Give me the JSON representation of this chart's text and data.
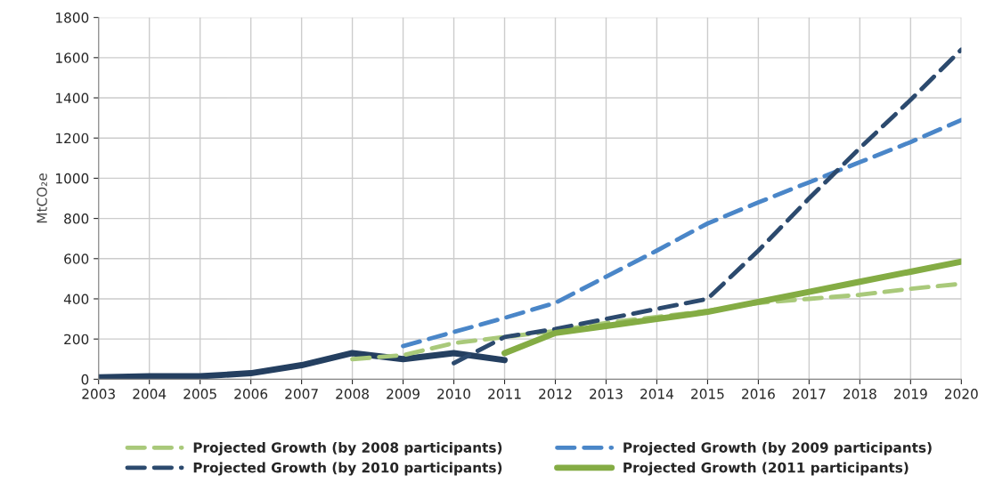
{
  "chart_data": {
    "type": "line",
    "ylabel": "MtCO₂e",
    "x": [
      2003,
      2004,
      2005,
      2006,
      2007,
      2008,
      2009,
      2010,
      2011,
      2012,
      2013,
      2014,
      2015,
      2016,
      2017,
      2018,
      2019,
      2020
    ],
    "xlim": [
      2003,
      2020
    ],
    "xticks": [
      2003,
      2004,
      2005,
      2006,
      2007,
      2008,
      2009,
      2010,
      2011,
      2012,
      2013,
      2014,
      2015,
      2016,
      2017,
      2018,
      2019,
      2020
    ],
    "ylim": [
      0,
      1800
    ],
    "yticks": [
      0,
      200,
      400,
      600,
      800,
      1000,
      1200,
      1400,
      1600,
      1800
    ],
    "grid": true,
    "legend": "bottom",
    "marker": "none",
    "series": [
      {
        "color": "#243f60",
        "line_style": "solid",
        "values": [
          10,
          15,
          15,
          30,
          70,
          130,
          100,
          130,
          95,
          null,
          null,
          null,
          null,
          null,
          null,
          null,
          null,
          null
        ]
      },
      {
        "name": "Projected Growth (by 2008 participants)",
        "color": "#a9c97a",
        "line_style": "dashed",
        "values": [
          null,
          null,
          null,
          null,
          null,
          100,
          120,
          180,
          210,
          240,
          280,
          310,
          340,
          380,
          400,
          420,
          450,
          475
        ]
      },
      {
        "name": "Projected Growth (by 2009 participants)",
        "color": "#4a86c8",
        "line_style": "dashed",
        "values": [
          null,
          null,
          null,
          null,
          null,
          null,
          165,
          235,
          305,
          380,
          510,
          640,
          775,
          880,
          980,
          1080,
          1180,
          1290
        ]
      },
      {
        "name": "Projected Growth (by 2010 participants)",
        "color": "#2c4a6e",
        "line_style": "dashed",
        "values": [
          null,
          null,
          null,
          null,
          null,
          null,
          null,
          80,
          210,
          250,
          300,
          350,
          400,
          640,
          900,
          1150,
          1390,
          1640
        ]
      },
      {
        "name": "Projected Growth (2011 participants)",
        "color": "#84ac44",
        "line_style": "solid",
        "values": [
          null,
          null,
          null,
          null,
          null,
          null,
          null,
          null,
          130,
          230,
          265,
          300,
          335,
          385,
          435,
          485,
          535,
          585
        ]
      }
    ]
  }
}
